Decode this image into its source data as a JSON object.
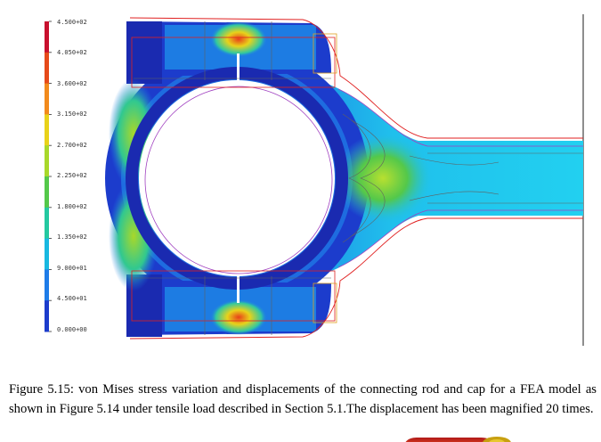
{
  "figure": {
    "color_scale": {
      "labels": [
        "4.500+02",
        "4.050+02",
        "3.600+02",
        "3.150+02",
        "2.700+02",
        "2.250+02",
        "1.800+02",
        "1.350+02",
        "9.000+01",
        "4.500+01",
        "0.000+00"
      ],
      "colors": [
        "#c8102e",
        "#e64a1a",
        "#f28a1c",
        "#e8d21a",
        "#a8d82a",
        "#54c84a",
        "#24c8a0",
        "#18b8e0",
        "#1e7ce8",
        "#1c3ccc",
        "#1a1f9c"
      ]
    },
    "colors": {
      "background": "#ffffff",
      "deformed_outline": "#e02020",
      "undeformed_outline": "#a040c0",
      "mesh_lines": "#606060"
    }
  },
  "caption": {
    "text": "Figure 5.15: von Mises stress variation and displacements of the connecting rod and cap for a FEA model as shown in Figure 5.14 under tensile load described in Section 5.1.The displacement has been magnified 20 times."
  }
}
